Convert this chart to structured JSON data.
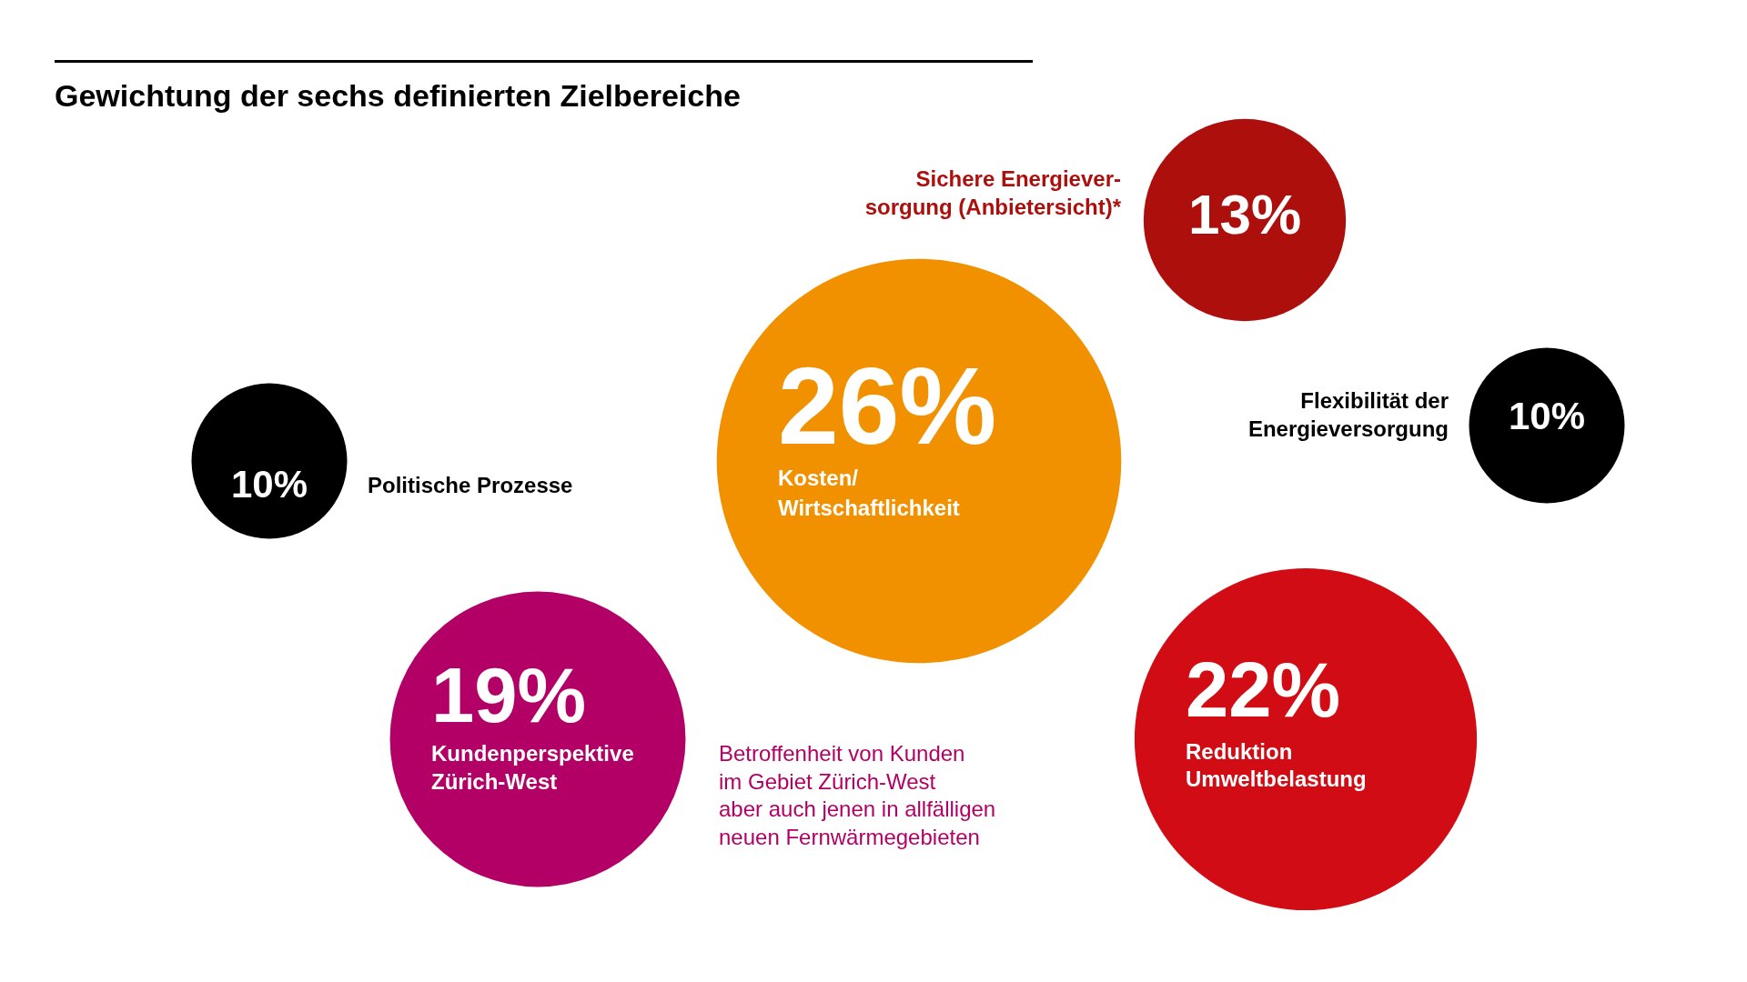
{
  "chart_data": {
    "type": "other",
    "title": "Gewichtung der sechs definierten Zielbereiche",
    "categories": [
      "Sichere Energiever-\nsorgung (Anbietersicht)*",
      "Politische Prozesse",
      "Kosten/\nWirtschaftlichkeit",
      "Flexibilität der\nEnergieversorgung",
      "Kundenperspektive\nZürich-West",
      "Reduktion\nUmweltbelastung"
    ],
    "values": [
      13,
      10,
      26,
      10,
      19,
      22
    ],
    "value_labels": [
      "13%",
      "10%",
      "26%",
      "10%",
      "19%",
      "22%"
    ],
    "colors": [
      "#ad0f0c",
      "#000000",
      "#f29100",
      "#000000",
      "#b20066",
      "#d20c14"
    ],
    "data_labels": true,
    "annotations": [
      "Betroffenheit von Kunden\nim Gebiet Zürich-West\naber auch jenen in allfälligen\nneuen Fernwärmegebieten"
    ]
  }
}
